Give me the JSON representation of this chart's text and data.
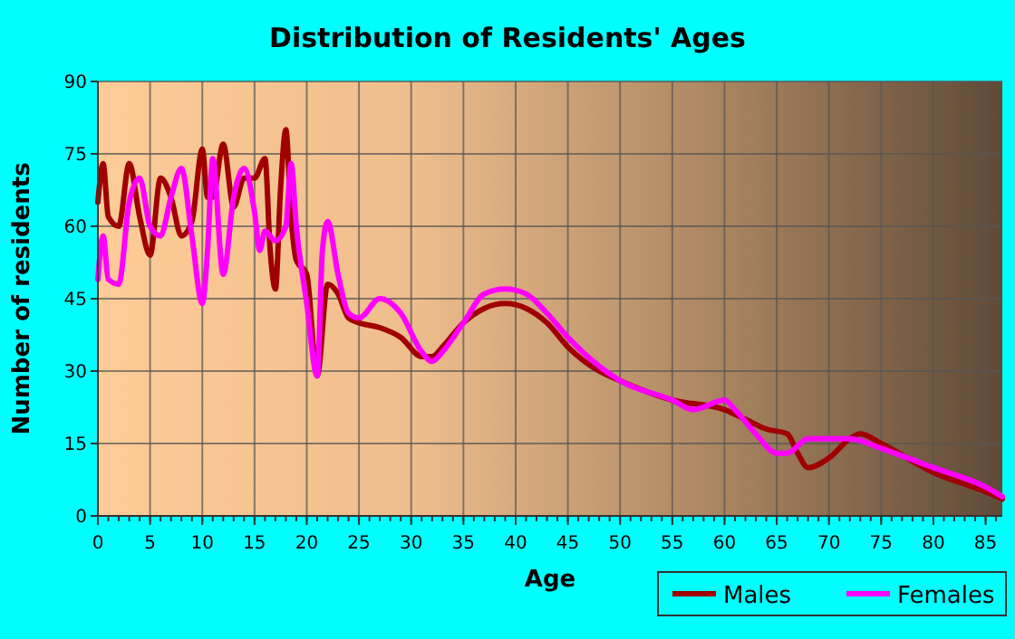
{
  "chart_data": {
    "type": "line",
    "title": "Distribution of Residents' Ages",
    "xlabel": "Age",
    "ylabel": "Number of residents",
    "xlim": [
      0,
      86.6
    ],
    "xticks": [
      0,
      5,
      10,
      15,
      20,
      25,
      30,
      35,
      40,
      45,
      50,
      55,
      60,
      65,
      70,
      75,
      80,
      85
    ],
    "ylim": [
      0,
      90
    ],
    "yticks": [
      0,
      15,
      30,
      45,
      60,
      75,
      90
    ],
    "grid": true,
    "legend": "bottom right",
    "marker": "none",
    "line_style": "solid",
    "series": [
      {
        "name": "Males",
        "color": "#a00000",
        "x": [
          0,
          0.5,
          1,
          2,
          3,
          4,
          5,
          6,
          7,
          8,
          9,
          10,
          10.5,
          11,
          12,
          13,
          14,
          15,
          16,
          16.5,
          17,
          17.5,
          18,
          18.5,
          19,
          20,
          21,
          22,
          23,
          24,
          25,
          27,
          29,
          31,
          32,
          33,
          35,
          37,
          39,
          41,
          43,
          45,
          48,
          50,
          55,
          60,
          62,
          64,
          66,
          67,
          68,
          70,
          72,
          73,
          75,
          80,
          85,
          86.6
        ],
        "values": [
          65,
          73,
          62,
          60,
          73,
          62,
          54,
          70,
          66,
          58,
          61,
          76,
          66,
          66,
          77,
          64,
          70,
          70,
          74,
          55,
          47,
          68,
          80,
          62,
          53,
          50,
          29,
          48,
          46,
          41,
          40,
          39,
          37,
          33,
          33,
          35,
          40,
          43,
          44,
          43,
          40,
          35,
          30,
          28,
          24,
          22,
          20,
          18,
          17,
          13,
          10,
          12,
          16,
          17,
          15,
          9,
          5,
          3.5
        ]
      },
      {
        "name": "Females",
        "color": "#ff00ff",
        "x": [
          0,
          0.5,
          1,
          2,
          3,
          4,
          5,
          6,
          7,
          8,
          9,
          10,
          10.5,
          11,
          12,
          13,
          14,
          15,
          15.5,
          16,
          17,
          18,
          18.5,
          19,
          20,
          21,
          21.5,
          22,
          23,
          24,
          25,
          27,
          29,
          31,
          32,
          33,
          35,
          37,
          39,
          41,
          43,
          45,
          48,
          50,
          55,
          57,
          60,
          61,
          63,
          65,
          66,
          68,
          70,
          72,
          75,
          80,
          85,
          86.6
        ],
        "values": [
          49,
          58,
          49,
          48,
          65,
          70,
          60,
          58,
          66,
          72,
          58,
          44,
          55,
          74,
          50,
          66,
          72,
          63,
          55,
          59,
          57,
          60,
          73,
          60,
          44,
          29,
          55,
          61,
          50,
          42,
          41,
          45,
          42,
          34,
          32,
          34,
          40,
          46,
          47,
          46,
          42,
          37,
          31,
          28,
          24,
          22,
          24,
          22,
          17,
          13,
          13,
          16,
          16,
          16,
          14,
          10,
          6,
          4
        ]
      }
    ]
  }
}
